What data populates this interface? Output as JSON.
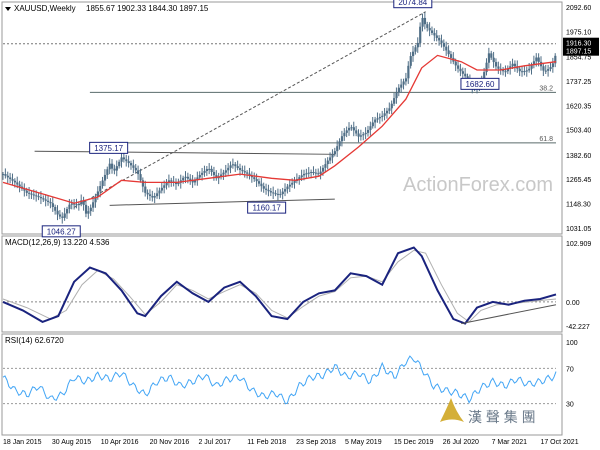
{
  "symbol_title": "XAUUSD,Weekly",
  "ohlc_readout": "1855.67 1902.33 1844.30 1897.15",
  "watermark": "ActionForex.com",
  "brand_glyphs": "漢 聲 集 團",
  "colors": {
    "candle": "#4f6e86",
    "ma": "#e53935",
    "macd": "#1a237e",
    "signal": "#b0b0b0",
    "rsi": "#42a5f5",
    "hline": "#5a6b6b",
    "trend": "#555555",
    "label_border": "#1a237e",
    "price_box": "#000000"
  },
  "chart_data": [
    {
      "type": "line",
      "title": "XAUUSD,Weekly",
      "ylim": [
        1031.05,
        2092.6
      ],
      "y_ticks": [
        {
          "value": 2092.6,
          "label": "2092.60"
        },
        {
          "value": 1975.1,
          "label": "1975.10"
        },
        {
          "value": 1854.75,
          "label": "1854.75"
        },
        {
          "value": 1737.25,
          "label": "1737.25"
        },
        {
          "value": 1620.35,
          "label": "1620.35"
        },
        {
          "value": 1503.4,
          "label": "1503.40"
        },
        {
          "value": 1382.6,
          "label": "1382.60"
        },
        {
          "value": 1265.45,
          "label": "1265.45"
        },
        {
          "value": 1148.3,
          "label": "1148.30"
        },
        {
          "value": 1031.05,
          "label": "1031.05"
        }
      ],
      "x_ticks": [
        "18 Jan 2015",
        "30 Aug 2015",
        "10 Apr 2016",
        "20 Nov 2016",
        "2 Jul 2017",
        "11 Feb 2018",
        "23 Sep 2018",
        "5 May 2019",
        "15 Dec 2019",
        "26 Jul 2020",
        "7 Mar 2021",
        "17 Oct 2021"
      ],
      "price_path": [
        [
          0,
          1290
        ],
        [
          3,
          1250
        ],
        [
          6,
          1200
        ],
        [
          9,
          1180
        ],
        [
          12,
          1150
        ],
        [
          14,
          1090
        ],
        [
          15,
          1080
        ],
        [
          17,
          1150
        ],
        [
          19,
          1140
        ],
        [
          20,
          1170
        ],
        [
          21,
          1100
        ],
        [
          22,
          1120
        ],
        [
          25,
          1250
        ],
        [
          27,
          1340
        ],
        [
          28,
          1300
        ],
        [
          30,
          1370
        ],
        [
          32,
          1340
        ],
        [
          34,
          1300
        ],
        [
          36,
          1200
        ],
        [
          38,
          1175
        ],
        [
          40,
          1220
        ],
        [
          42,
          1260
        ],
        [
          44,
          1240
        ],
        [
          46,
          1280
        ],
        [
          48,
          1250
        ],
        [
          50,
          1290
        ],
        [
          52,
          1320
        ],
        [
          54,
          1270
        ],
        [
          56,
          1300
        ],
        [
          58,
          1340
        ],
        [
          60,
          1310
        ],
        [
          62,
          1290
        ],
        [
          64,
          1260
        ],
        [
          66,
          1220
        ],
        [
          68,
          1200
        ],
        [
          70,
          1190
        ],
        [
          72,
          1230
        ],
        [
          74,
          1260
        ],
        [
          76,
          1290
        ],
        [
          78,
          1300
        ],
        [
          80,
          1290
        ],
        [
          82,
          1350
        ],
        [
          84,
          1400
        ],
        [
          86,
          1480
        ],
        [
          88,
          1520
        ],
        [
          90,
          1470
        ],
        [
          92,
          1490
        ],
        [
          94,
          1550
        ],
        [
          96,
          1570
        ],
        [
          98,
          1610
        ],
        [
          100,
          1700
        ],
        [
          102,
          1750
        ],
        [
          103,
          1850
        ],
        [
          105,
          1920
        ],
        [
          106,
          2050
        ],
        [
          107,
          2000
        ],
        [
          109,
          1960
        ],
        [
          111,
          1920
        ],
        [
          113,
          1860
        ],
        [
          115,
          1800
        ],
        [
          117,
          1760
        ],
        [
          119,
          1700
        ],
        [
          121,
          1720
        ],
        [
          123,
          1870
        ],
        [
          125,
          1800
        ],
        [
          127,
          1780
        ],
        [
          129,
          1820
        ],
        [
          131,
          1780
        ],
        [
          133,
          1790
        ],
        [
          135,
          1850
        ],
        [
          137,
          1780
        ],
        [
          139,
          1810
        ],
        [
          140,
          1870
        ]
      ],
      "ma_path": [
        [
          0,
          1250
        ],
        [
          10,
          1195
        ],
        [
          18,
          1150
        ],
        [
          24,
          1180
        ],
        [
          30,
          1260
        ],
        [
          36,
          1250
        ],
        [
          44,
          1250
        ],
        [
          52,
          1270
        ],
        [
          60,
          1290
        ],
        [
          68,
          1270
        ],
        [
          74,
          1260
        ],
        [
          80,
          1280
        ],
        [
          84,
          1330
        ],
        [
          90,
          1420
        ],
        [
          96,
          1520
        ],
        [
          102,
          1650
        ],
        [
          106,
          1800
        ],
        [
          110,
          1860
        ],
        [
          116,
          1830
        ],
        [
          120,
          1790
        ],
        [
          126,
          1790
        ],
        [
          132,
          1810
        ],
        [
          140,
          1830
        ]
      ],
      "labels": [
        {
          "text": "2074.84",
          "t": 104,
          "value": 2074.84
        },
        {
          "text": "1375.17",
          "t": 27,
          "value": 1375.17
        },
        {
          "text": "1160.17",
          "t": 67,
          "value": 1160.17
        },
        {
          "text": "1046.27",
          "t": 15,
          "value": 1046.27
        },
        {
          "text": "1682.60",
          "t": 121,
          "value": 1682.6
        }
      ],
      "fib_levels": [
        {
          "label": "38.2",
          "value": 1682.6
        },
        {
          "label": "61.8",
          "value": 1440.0
        }
      ],
      "resistance_level": 1916.3,
      "current_price": {
        "value": 1897.15,
        "label": "1897.15"
      },
      "resistance_box": {
        "label": "1916.30"
      },
      "trendlines": [
        {
          "from": [
            8,
            1400
          ],
          "to": [
            84,
            1385
          ]
        },
        {
          "from": [
            27,
            1140
          ],
          "to": [
            84,
            1170
          ]
        },
        {
          "from": [
            18,
            1130
          ],
          "to": [
            107,
            2070
          ],
          "dashed": true
        }
      ]
    },
    {
      "type": "line",
      "title": "MACD(12,26,9) 13.220 4.536",
      "ylim": [
        -42.227,
        102.909
      ],
      "y_ticks": [
        {
          "value": 102.909,
          "label": "102.909"
        },
        {
          "value": 0.0,
          "label": "0.00"
        },
        {
          "value": -42.227,
          "label": "-42.227"
        }
      ],
      "macd_path": [
        [
          0,
          0
        ],
        [
          5,
          -15
        ],
        [
          10,
          -35
        ],
        [
          14,
          -25
        ],
        [
          18,
          35
        ],
        [
          22,
          60
        ],
        [
          26,
          50
        ],
        [
          30,
          20
        ],
        [
          34,
          -20
        ],
        [
          36,
          -25
        ],
        [
          40,
          10
        ],
        [
          44,
          35
        ],
        [
          48,
          15
        ],
        [
          52,
          0
        ],
        [
          56,
          25
        ],
        [
          60,
          35
        ],
        [
          64,
          10
        ],
        [
          68,
          -25
        ],
        [
          72,
          -30
        ],
        [
          76,
          0
        ],
        [
          80,
          15
        ],
        [
          84,
          20
        ],
        [
          88,
          50
        ],
        [
          92,
          45
        ],
        [
          96,
          30
        ],
        [
          100,
          85
        ],
        [
          104,
          95
        ],
        [
          106,
          80
        ],
        [
          110,
          20
        ],
        [
          114,
          -30
        ],
        [
          117,
          -38
        ],
        [
          120,
          -10
        ],
        [
          124,
          0
        ],
        [
          128,
          -5
        ],
        [
          132,
          2
        ],
        [
          136,
          5
        ],
        [
          140,
          13
        ]
      ],
      "signal_path": [
        [
          0,
          5
        ],
        [
          6,
          -10
        ],
        [
          12,
          -30
        ],
        [
          16,
          -15
        ],
        [
          20,
          30
        ],
        [
          24,
          55
        ],
        [
          28,
          40
        ],
        [
          32,
          10
        ],
        [
          36,
          -22
        ],
        [
          40,
          0
        ],
        [
          44,
          30
        ],
        [
          48,
          20
        ],
        [
          52,
          5
        ],
        [
          56,
          18
        ],
        [
          60,
          30
        ],
        [
          64,
          15
        ],
        [
          68,
          -15
        ],
        [
          72,
          -28
        ],
        [
          76,
          -8
        ],
        [
          80,
          10
        ],
        [
          84,
          18
        ],
        [
          88,
          42
        ],
        [
          92,
          45
        ],
        [
          96,
          35
        ],
        [
          100,
          70
        ],
        [
          104,
          90
        ],
        [
          107,
          85
        ],
        [
          111,
          30
        ],
        [
          115,
          -20
        ],
        [
          118,
          -35
        ],
        [
          121,
          -15
        ],
        [
          125,
          -5
        ],
        [
          129,
          -3
        ],
        [
          133,
          0
        ],
        [
          137,
          3
        ],
        [
          140,
          5
        ]
      ],
      "trendline": {
        "from": [
          116,
          -38
        ],
        "to": [
          140,
          -5
        ]
      }
    },
    {
      "type": "line",
      "title": "RSI(14) 62.6720",
      "ylim": [
        0,
        100
      ],
      "y_ticks": [
        {
          "value": 100,
          "label": "100"
        },
        {
          "value": 70,
          "label": "70"
        },
        {
          "value": 30,
          "label": "30"
        }
      ],
      "rsi_path": [
        [
          0,
          60
        ],
        [
          3,
          45
        ],
        [
          6,
          40
        ],
        [
          9,
          50
        ],
        [
          12,
          35
        ],
        [
          15,
          40
        ],
        [
          18,
          60
        ],
        [
          21,
          55
        ],
        [
          24,
          62
        ],
        [
          27,
          58
        ],
        [
          30,
          65
        ],
        [
          33,
          50
        ],
        [
          36,
          40
        ],
        [
          39,
          55
        ],
        [
          42,
          60
        ],
        [
          45,
          50
        ],
        [
          48,
          55
        ],
        [
          51,
          62
        ],
        [
          54,
          50
        ],
        [
          57,
          58
        ],
        [
          60,
          60
        ],
        [
          63,
          45
        ],
        [
          66,
          38
        ],
        [
          69,
          42
        ],
        [
          72,
          32
        ],
        [
          75,
          50
        ],
        [
          78,
          60
        ],
        [
          81,
          62
        ],
        [
          84,
          72
        ],
        [
          87,
          60
        ],
        [
          90,
          65
        ],
        [
          93,
          55
        ],
        [
          96,
          72
        ],
        [
          99,
          60
        ],
        [
          102,
          78
        ],
        [
          104,
          82
        ],
        [
          106,
          70
        ],
        [
          109,
          50
        ],
        [
          112,
          45
        ],
        [
          115,
          42
        ],
        [
          118,
          35
        ],
        [
          121,
          48
        ],
        [
          124,
          55
        ],
        [
          127,
          50
        ],
        [
          130,
          58
        ],
        [
          133,
          52
        ],
        [
          136,
          55
        ],
        [
          139,
          60
        ],
        [
          140,
          63
        ]
      ]
    }
  ]
}
